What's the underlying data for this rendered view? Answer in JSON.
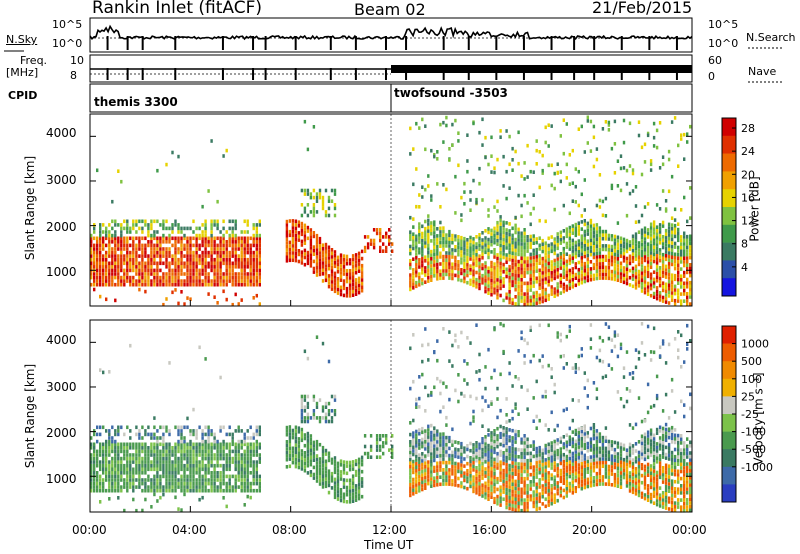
{
  "header": {
    "title": "Rankin Inlet (fitACF)",
    "beam": "Beam 02",
    "date": "21/Feb/2015"
  },
  "top_panel": {
    "nsky_label": "N.Sky",
    "left_tick_top": "10^5",
    "left_tick_bottom": "10^0",
    "right_tick_top": "10^5",
    "right_tick_bottom": "10^0",
    "nsearch_label": "N.Search",
    "freq_label": "Freq.",
    "freq_unit": "[MHz]",
    "freq_tick_top": "10",
    "freq_tick_bottom": "8",
    "nave_tick_top": "60",
    "nave_tick_bottom": "0",
    "nave_label": "Nave",
    "cpid_label": "CPID",
    "cpid_left": "themis 3300",
    "cpid_right": "twofsound -3503"
  },
  "chart_data": [
    {
      "type": "heatmap",
      "name": "power",
      "ylabel": "Slant Range [km]",
      "yticks": [
        1000,
        2000,
        3000,
        4000
      ],
      "ylim": [
        200,
        4500
      ],
      "xlim_hours": [
        0,
        24
      ],
      "colorbar_label": "Power [dB]",
      "colorbar_ticks": [
        "4",
        "8",
        "12",
        "16",
        "20",
        "24",
        "28"
      ],
      "colors": [
        "#1515e0",
        "#2b4fa8",
        "#3a7a62",
        "#3f9a4a",
        "#7fc240",
        "#e6d200",
        "#f0a000",
        "#ee6a00",
        "#e03000",
        "#d00000"
      ]
    },
    {
      "type": "heatmap",
      "name": "velocity",
      "ylabel": "Slant Range [km]",
      "yticks": [
        1000,
        2000,
        3000,
        4000
      ],
      "ylim": [
        200,
        4500
      ],
      "xlim_hours": [
        0,
        24
      ],
      "colorbar_label": "Velocity [m s⁻¹]",
      "colorbar_ticks": [
        "1000",
        "500",
        "100",
        "25",
        "-25",
        "-100",
        "-500",
        "-1000"
      ],
      "colors": [
        "#2a3ec0",
        "#3d6aa8",
        "#3a7a62",
        "#4a9a4e",
        "#7cc24a",
        "#c8c8c0",
        "#f0b000",
        "#f08a00",
        "#ee5c00",
        "#e02000"
      ]
    }
  ],
  "x_axis": {
    "ticks": [
      "00:00",
      "04:00",
      "08:00",
      "12:00",
      "16:00",
      "20:00",
      "00:00"
    ],
    "label": "Time UT"
  },
  "palette": {
    "axis": "#000000",
    "gap": "#ffffff"
  }
}
